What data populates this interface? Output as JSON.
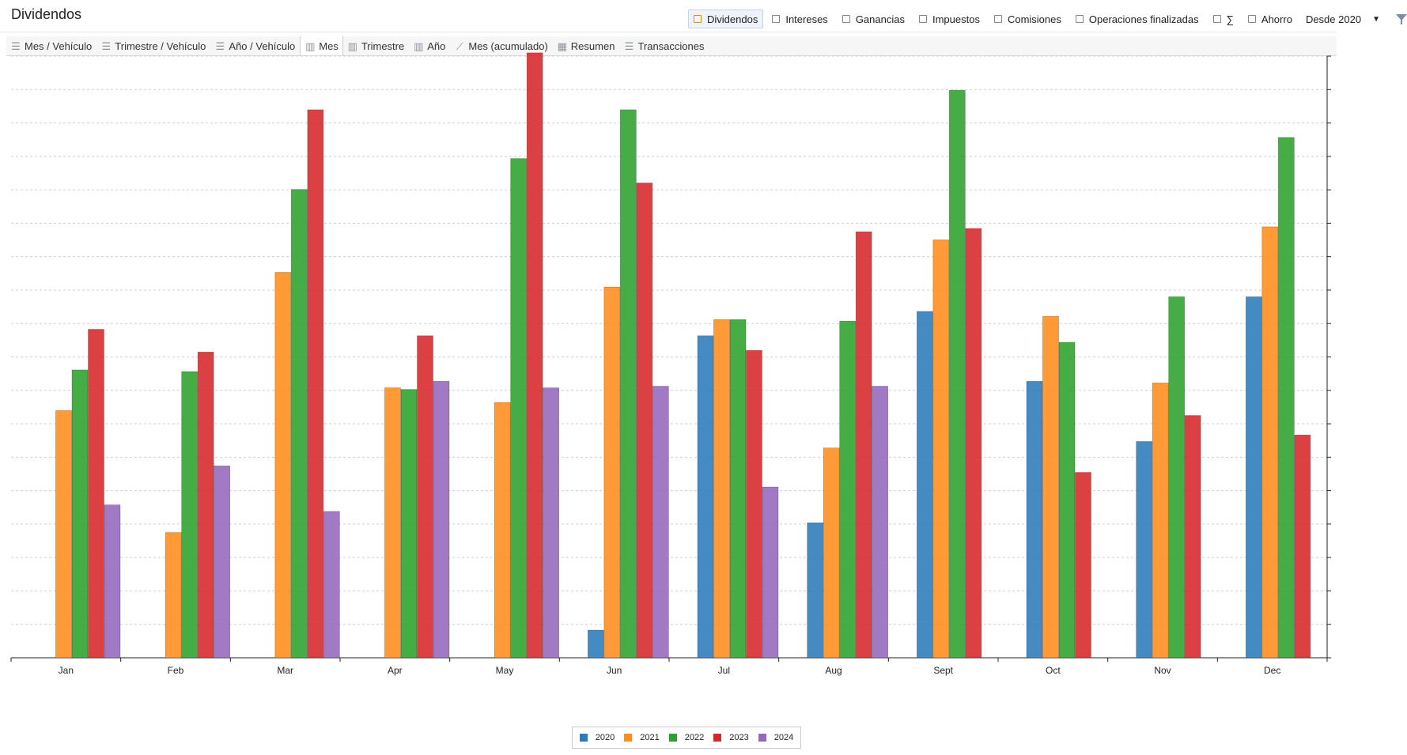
{
  "app": {
    "title": "Dividendos"
  },
  "filters": {
    "items": [
      {
        "label": "Dividendos",
        "checked": true
      },
      {
        "label": "Intereses",
        "checked": false
      },
      {
        "label": "Ganancias",
        "checked": false
      },
      {
        "label": "Impuestos",
        "checked": false
      },
      {
        "label": "Comisiones",
        "checked": false
      },
      {
        "label": "Operaciones finalizadas",
        "checked": false
      },
      {
        "label": "∑",
        "checked": false
      },
      {
        "label": "Ahorro",
        "checked": false
      }
    ],
    "since_label": "Desde 2020",
    "icons": {
      "dropdown": "caret-down-icon",
      "filter": "funnel-icon"
    }
  },
  "tabs": {
    "items": [
      {
        "label": "Mes / Vehículo",
        "icon": "list-icon"
      },
      {
        "label": "Trimestre / Vehículo",
        "icon": "list-icon"
      },
      {
        "label": "Año / Vehículo",
        "icon": "list-icon"
      },
      {
        "label": "Mes",
        "icon": "bar-chart-icon",
        "active": true
      },
      {
        "label": "Trimestre",
        "icon": "bar-chart-icon"
      },
      {
        "label": "Año",
        "icon": "bar-chart-icon"
      },
      {
        "label": "Mes (acumulado)",
        "icon": "line-chart-icon"
      },
      {
        "label": "Resumen",
        "icon": "calendar-icon"
      },
      {
        "label": "Transacciones",
        "icon": "list-icon"
      }
    ]
  },
  "chart_data": {
    "type": "bar",
    "title": "",
    "xlabel": "",
    "ylabel": "",
    "ylim": [
      0,
      18.5
    ],
    "grid": true,
    "legend_position": "bottom-center",
    "categories": [
      "Jan",
      "Feb",
      "Mar",
      "Apr",
      "May",
      "Jun",
      "Jul",
      "Aug",
      "Sept",
      "Oct",
      "Nov",
      "Dec"
    ],
    "series": [
      {
        "name": "2020",
        "color": "#2b7bba",
        "values": [
          0,
          0,
          0,
          0,
          0,
          0.85,
          9.9,
          4.15,
          10.65,
          8.5,
          6.65,
          11.1
        ]
      },
      {
        "name": "2021",
        "color": "#ff8c1a",
        "values": [
          7.6,
          3.85,
          11.85,
          8.3,
          7.85,
          11.4,
          10.4,
          6.45,
          12.85,
          10.5,
          8.45,
          13.25
        ]
      },
      {
        "name": "2022",
        "color": "#2ca02c",
        "values": [
          8.85,
          8.8,
          14.4,
          8.25,
          15.35,
          16.85,
          10.4,
          10.35,
          17.45,
          9.7,
          11.1,
          16.0
        ]
      },
      {
        "name": "2023",
        "color": "#d62728",
        "values": [
          10.1,
          9.4,
          16.85,
          9.9,
          18.6,
          14.6,
          9.45,
          13.1,
          13.2,
          5.7,
          7.45,
          6.85
        ]
      },
      {
        "name": "2024",
        "color": "#9467bd",
        "values": [
          4.7,
          5.9,
          4.5,
          8.5,
          8.3,
          8.35,
          5.25,
          8.35,
          0,
          0,
          0,
          0
        ]
      }
    ]
  }
}
